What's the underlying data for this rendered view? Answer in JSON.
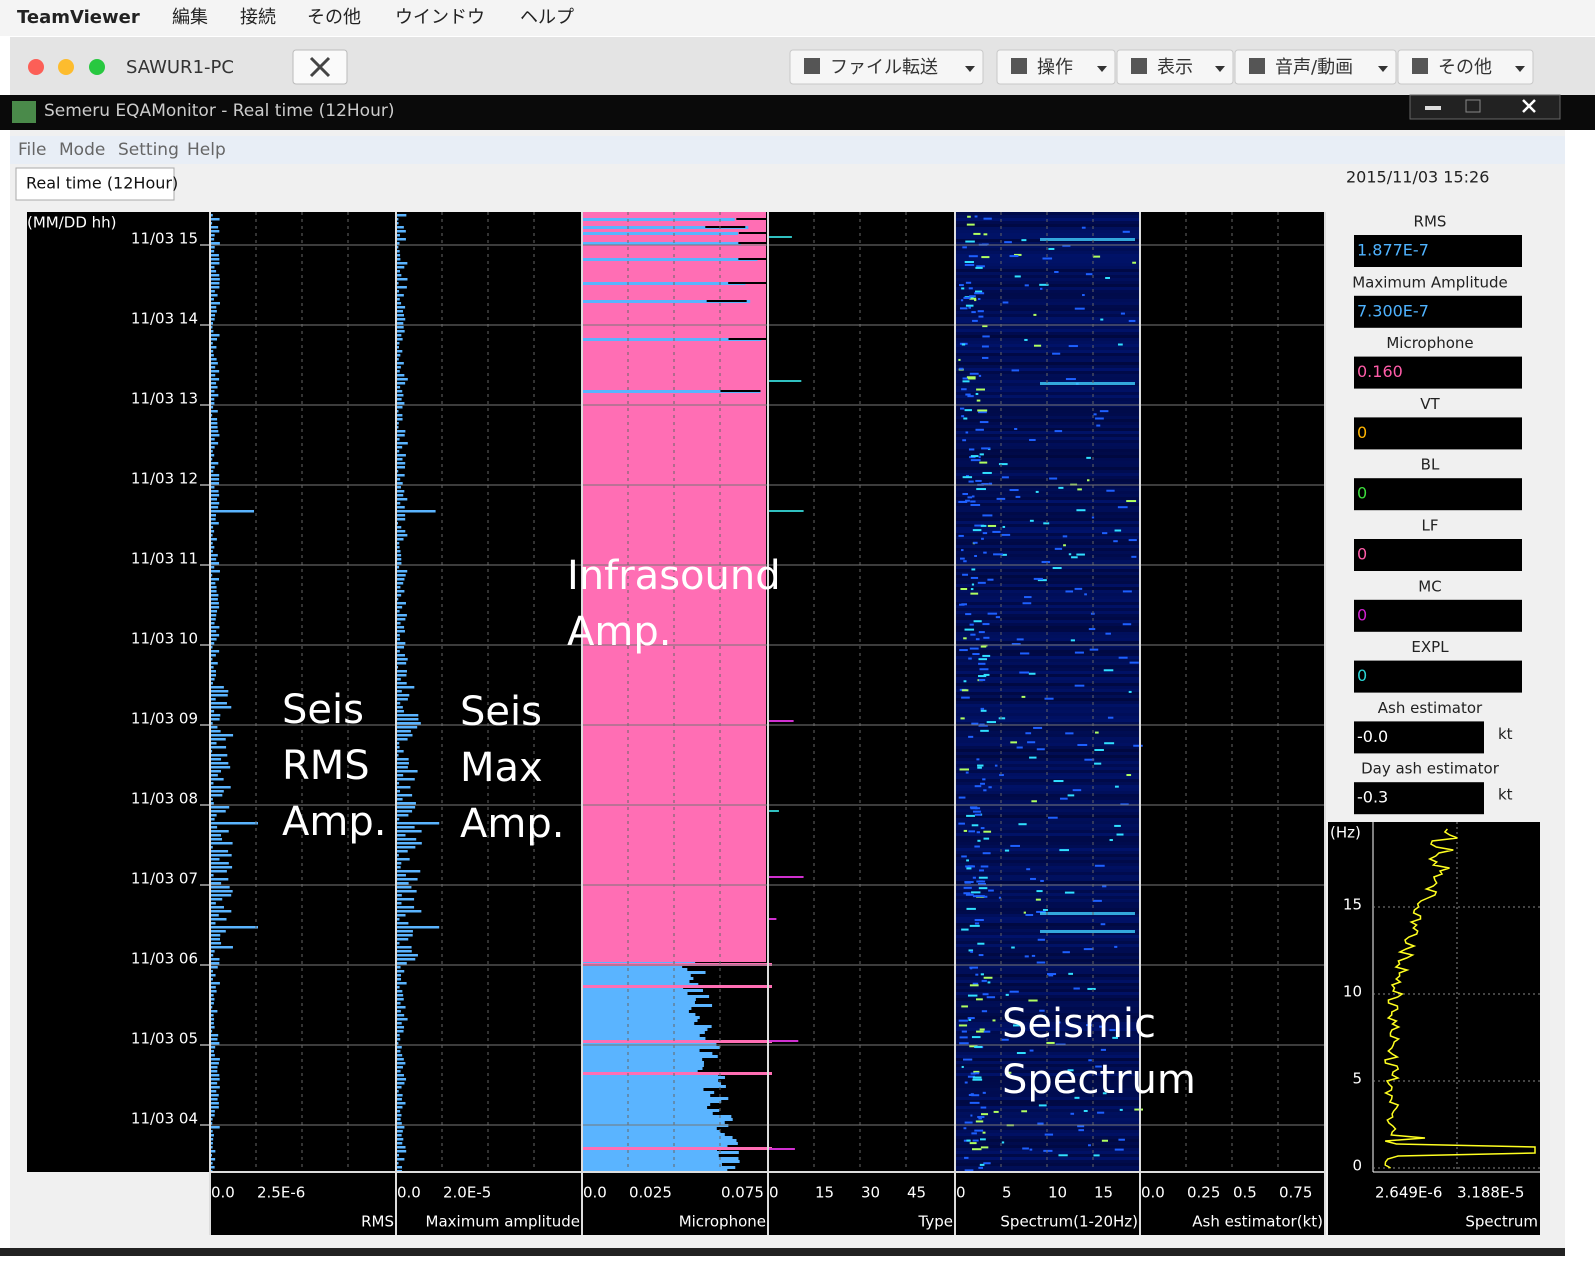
{
  "menubar": {
    "app": "TeamViewer",
    "items": [
      "編集",
      "接続",
      "その他",
      "ウインドウ",
      "ヘルプ"
    ]
  },
  "toolbar": {
    "title": "SAWUR1-PC",
    "buttons": [
      "ファイル転送",
      "操作",
      "表示",
      "音声/動画",
      "その他"
    ]
  },
  "window": {
    "title": "Semeru EQAMonitor - Real time (12Hour)",
    "menu": [
      "File",
      "Mode",
      "Setting",
      "Help"
    ],
    "tab": "Real time (12Hour)",
    "timestamp": "2015/11/03 15:26"
  },
  "time_axis": {
    "label": "(MM/DD hh)",
    "ticks": [
      "11/03 15",
      "11/03 14",
      "11/03 13",
      "11/03 12",
      "11/03 11",
      "11/03 10",
      "11/03 09",
      "11/03 08",
      "11/03 07",
      "11/03 06",
      "11/03 05",
      "11/03 04"
    ]
  },
  "panels": [
    {
      "ticks": [
        "0.0",
        "2.5E-6"
      ],
      "axis": "RMS"
    },
    {
      "ticks": [
        "0.0",
        "2.0E-5"
      ],
      "axis": "Maximum amplitude"
    },
    {
      "ticks": [
        "0.0",
        "0.025",
        "0.075"
      ],
      "axis": "Microphone"
    },
    {
      "ticks": [
        "0",
        "15",
        "30",
        "45"
      ],
      "axis": "Type"
    },
    {
      "ticks": [
        "0",
        "5",
        "10",
        "15"
      ],
      "axis": "Spectrum(1-20Hz)"
    },
    {
      "ticks": [
        "0.0",
        "0.25",
        "0.5",
        "0.75"
      ],
      "axis": "Ash estimator(kt)"
    }
  ],
  "readouts": [
    {
      "label": "RMS",
      "value": "1.877E-7"
    },
    {
      "label": "Maximum Amplitude",
      "value": "7.300E-7"
    },
    {
      "label": "Microphone",
      "value": "0.160"
    },
    {
      "label": "VT",
      "value": "0"
    },
    {
      "label": "BL",
      "value": "0"
    },
    {
      "label": "LF",
      "value": "0"
    },
    {
      "label": "MC",
      "value": "0"
    },
    {
      "label": "EXPL",
      "value": "0"
    },
    {
      "label": "Ash estimator",
      "value": "-0.0",
      "unit": "kt"
    },
    {
      "label": "Day ash estimator",
      "value": "-0.3",
      "unit": "kt"
    }
  ],
  "spectrum_plot": {
    "y_label": "(Hz)",
    "yticks": [
      "15",
      "10",
      "5",
      "0"
    ],
    "xticks": [
      "2.649E-6",
      "3.188E-5"
    ],
    "axis": "Spectrum"
  },
  "annotations": [
    [
      "Seis",
      "RMS",
      "Amp."
    ],
    [
      "Seis",
      "Max",
      "Amp."
    ],
    [
      "Infrasound",
      "Amp."
    ],
    [
      "Seismic",
      "Spectrum"
    ]
  ]
}
